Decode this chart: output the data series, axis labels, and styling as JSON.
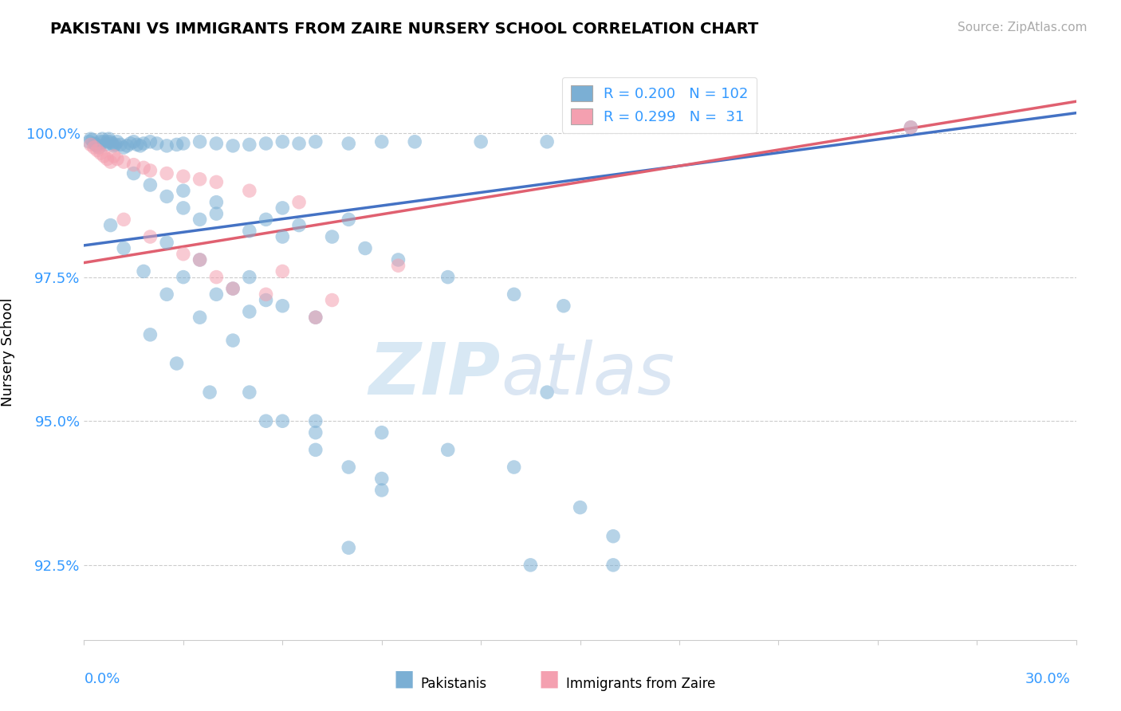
{
  "title": "PAKISTANI VS IMMIGRANTS FROM ZAIRE NURSERY SCHOOL CORRELATION CHART",
  "source": "Source: ZipAtlas.com",
  "ylabel": "Nursery School",
  "yticks": [
    92.5,
    95.0,
    97.5,
    100.0
  ],
  "ytick_labels": [
    "92.5%",
    "95.0%",
    "97.5%",
    "100.0%"
  ],
  "xmin": 0.0,
  "xmax": 30.0,
  "ymin": 91.2,
  "ymax": 101.2,
  "R_pakistani": 0.2,
  "N_pakistani": 102,
  "R_zaire": 0.299,
  "N_zaire": 31,
  "color_pakistani": "#7bafd4",
  "color_zaire": "#f4a0b0",
  "line_color_pakistani": "#4472c4",
  "line_color_zaire": "#e06070",
  "pak_line_x0": 0.0,
  "pak_line_y0": 98.05,
  "pak_line_x1": 30.0,
  "pak_line_y1": 100.35,
  "zaire_line_x0": 0.0,
  "zaire_line_y0": 97.75,
  "zaire_line_x1": 30.0,
  "zaire_line_y1": 100.55,
  "pak_x": [
    0.15,
    0.2,
    0.25,
    0.3,
    0.35,
    0.4,
    0.45,
    0.5,
    0.55,
    0.6,
    0.65,
    0.7,
    0.75,
    0.8,
    0.85,
    0.9,
    0.95,
    1.0,
    1.1,
    1.2,
    1.3,
    1.4,
    1.5,
    1.6,
    1.7,
    1.8,
    2.0,
    2.2,
    2.5,
    2.8,
    3.0,
    3.5,
    4.0,
    4.5,
    5.0,
    5.5,
    6.0,
    6.5,
    7.0,
    8.0,
    9.0,
    10.0,
    12.0,
    14.0,
    1.5,
    2.0,
    2.5,
    3.0,
    3.5,
    4.0,
    5.0,
    5.5,
    6.0,
    6.5,
    7.5,
    8.5,
    9.5,
    11.0,
    13.0,
    14.5,
    3.0,
    4.0,
    5.0,
    6.0,
    7.0,
    2.5,
    3.5,
    5.0,
    8.0,
    4.5,
    5.5,
    3.0,
    4.0,
    6.0,
    0.8,
    1.2,
    1.8,
    2.5,
    3.5,
    4.5,
    2.0,
    2.8,
    3.8,
    5.5,
    7.0,
    9.0,
    7.0,
    9.0,
    11.0,
    13.0,
    5.0,
    6.0,
    7.0,
    8.0,
    9.0,
    14.0,
    15.0,
    16.0,
    8.0,
    25.0,
    13.5,
    16.0
  ],
  "pak_y": [
    99.85,
    99.9,
    99.88,
    99.82,
    99.8,
    99.78,
    99.75,
    99.85,
    99.9,
    99.85,
    99.8,
    99.85,
    99.9,
    99.85,
    99.82,
    99.78,
    99.8,
    99.85,
    99.8,
    99.75,
    99.78,
    99.82,
    99.85,
    99.8,
    99.78,
    99.82,
    99.85,
    99.82,
    99.78,
    99.8,
    99.82,
    99.85,
    99.82,
    99.78,
    99.8,
    99.82,
    99.85,
    99.82,
    99.85,
    99.82,
    99.85,
    99.85,
    99.85,
    99.85,
    99.3,
    99.1,
    98.9,
    98.7,
    98.5,
    98.8,
    98.3,
    98.5,
    98.7,
    98.4,
    98.2,
    98.0,
    97.8,
    97.5,
    97.2,
    97.0,
    97.5,
    97.2,
    96.9,
    97.0,
    96.8,
    98.1,
    97.8,
    97.5,
    98.5,
    97.3,
    97.1,
    99.0,
    98.6,
    98.2,
    98.4,
    98.0,
    97.6,
    97.2,
    96.8,
    96.4,
    96.5,
    96.0,
    95.5,
    95.0,
    94.5,
    94.0,
    95.0,
    94.8,
    94.5,
    94.2,
    95.5,
    95.0,
    94.8,
    94.2,
    93.8,
    95.5,
    93.5,
    93.0,
    92.8,
    100.1,
    92.5,
    92.5
  ],
  "zaire_x": [
    0.2,
    0.3,
    0.4,
    0.5,
    0.6,
    0.7,
    0.8,
    0.9,
    1.0,
    1.2,
    1.5,
    1.8,
    2.0,
    2.5,
    3.0,
    3.5,
    4.0,
    5.0,
    6.5,
    1.2,
    2.0,
    3.0,
    4.0,
    5.5,
    7.0,
    3.5,
    4.5,
    6.0,
    7.5,
    9.5,
    25.0
  ],
  "zaire_y": [
    99.8,
    99.75,
    99.7,
    99.65,
    99.6,
    99.55,
    99.5,
    99.6,
    99.55,
    99.5,
    99.45,
    99.4,
    99.35,
    99.3,
    99.25,
    99.2,
    99.15,
    99.0,
    98.8,
    98.5,
    98.2,
    97.9,
    97.5,
    97.2,
    96.8,
    97.8,
    97.3,
    97.6,
    97.1,
    97.7,
    100.1
  ]
}
